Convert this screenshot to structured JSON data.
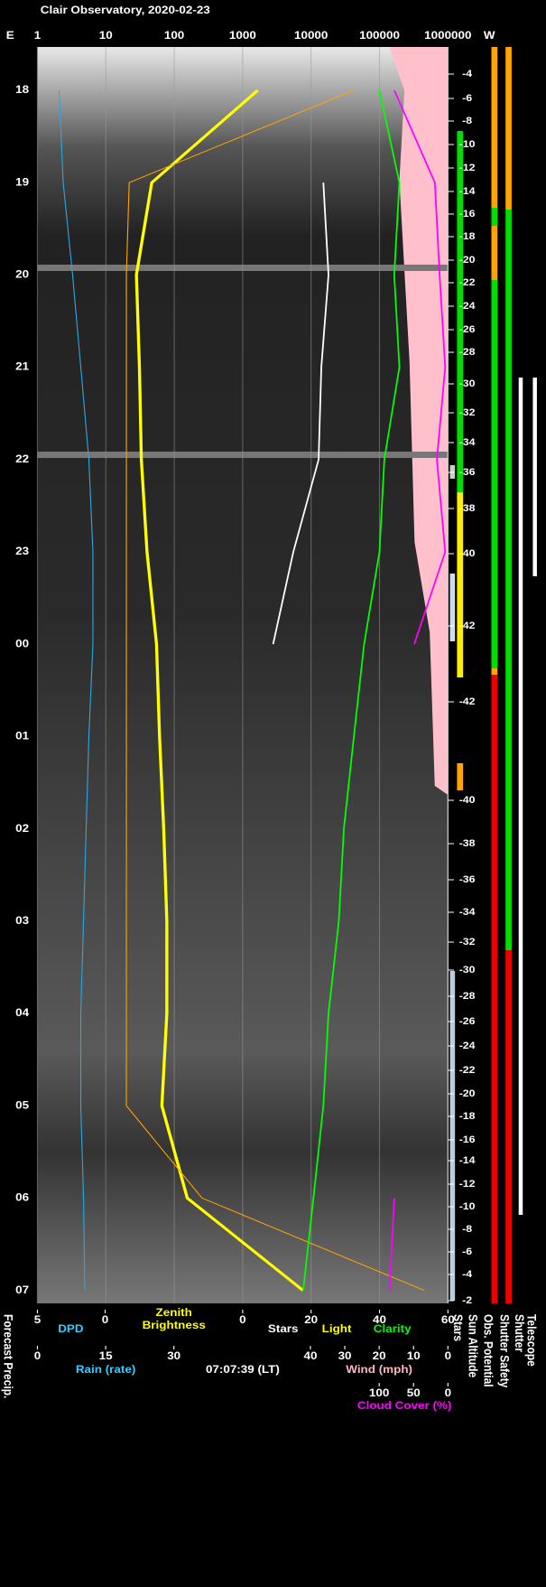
{
  "title": "Clair Observatory, 2020-02-23",
  "chart_data": {
    "type": "line",
    "east_label": "E",
    "west_label": "W",
    "categories": [
      "18",
      "19",
      "20",
      "21",
      "22",
      "23",
      "00",
      "01",
      "02",
      "03",
      "04",
      "05",
      "06",
      "07"
    ],
    "axes": [
      {
        "lim": [
          1,
          1000000
        ],
        "log": true,
        "ticks": [
          1,
          10,
          100,
          1000,
          10000,
          100000,
          1000000
        ]
      },
      {
        "lim": [
          5,
          0
        ],
        "ticks": [
          5,
          0
        ]
      },
      {
        "lim": [
          0,
          60
        ],
        "ticks": [
          0,
          20,
          40,
          60
        ]
      },
      {
        "name": "Rain (rate)",
        "color": "#33ccff",
        "lim": [
          0,
          30
        ],
        "ticks": [
          0,
          15,
          30
        ]
      },
      {
        "name": "Wind (mph)",
        "color": "#ffb6c1",
        "lim": [
          40,
          0
        ],
        "ticks": [
          40,
          30,
          20,
          10,
          0
        ]
      },
      {
        "lim": [
          100,
          0
        ],
        "ticks": [
          100,
          50,
          0
        ]
      }
    ],
    "series": [
      {
        "name": "DPD",
        "color": "#29a8e0",
        "axis": 1,
        "values": [
          3.4,
          3.1,
          2.4,
          1.8,
          1.2,
          0.9,
          0.9,
          1.2,
          1.4,
          1.6,
          1.8,
          1.8,
          1.6,
          1.5
        ]
      },
      {
        "name": "Zenith Brightness",
        "color": "#ffff00",
        "axis": 0,
        "values": [
          1660,
          47,
          28,
          31,
          33,
          40,
          55,
          61,
          70,
          78,
          78,
          66,
          155,
          7600
        ]
      },
      {
        "name": "Stars",
        "color": "#ffffff",
        "axis": 2,
        "values": [
          null,
          23.6,
          25.1,
          23,
          22.2,
          14.8,
          8.9,
          null,
          null,
          null,
          null,
          null,
          null,
          null
        ]
      },
      {
        "name": "Light",
        "color": "#ffa500",
        "axis": 0,
        "values": [
          42000,
          22,
          20,
          20,
          20,
          20,
          20,
          20,
          20,
          20,
          20,
          20,
          255,
          450000
        ]
      },
      {
        "name": "Clarity",
        "color": "#00ff00",
        "axis": 2,
        "values": [
          40,
          45.8,
          44.3,
          45.8,
          41.4,
          40,
          35.5,
          32.5,
          29.6,
          28.1,
          25.1,
          23.6,
          20.7,
          17.7
        ]
      },
      {
        "name": "Cloud Cover (%)",
        "color": "#ff00ff",
        "axis": 5,
        "values": [
          78,
          19,
          12,
          4,
          16,
          4,
          49,
          null,
          null,
          null,
          null,
          null,
          78,
          85
        ]
      }
    ],
    "sun_altitude_ticks": [
      -4,
      -6,
      -8,
      -10,
      -12,
      -14,
      -16,
      -18,
      -20,
      -22,
      -24,
      -26,
      -28,
      -30,
      -32,
      -34,
      -36,
      -38,
      -40,
      -42,
      -42,
      -40,
      -38,
      -36,
      -34,
      -32,
      -30,
      -28,
      -26,
      -24,
      -22,
      -20,
      -18,
      -16,
      -14,
      -12,
      -10,
      -8,
      -6,
      -4,
      -2
    ],
    "timestamp": "07:07:39 (LT)",
    "status_labels": [
      "Forecast Precip.",
      "Stars",
      "Sun Altitude",
      "Obs. Potential",
      "Shutter Safety",
      "Shutter",
      "Telescope"
    ]
  }
}
